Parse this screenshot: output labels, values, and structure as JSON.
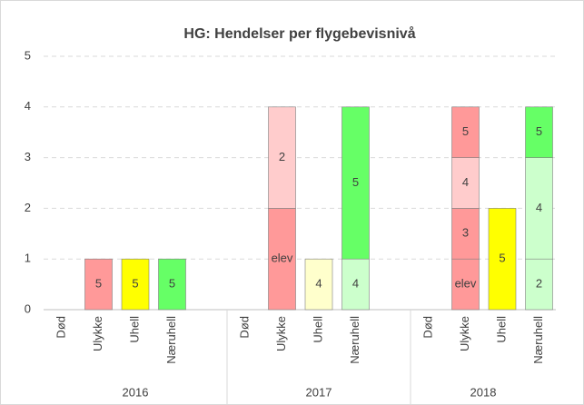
{
  "chart_data": {
    "type": "stacked_bar",
    "title": "HG: Hendelser per flygebevisnivå",
    "ylim": [
      0,
      5
    ],
    "yticks": [
      0,
      1,
      2,
      3,
      4,
      5
    ],
    "grid": true,
    "groups": [
      {
        "label": "2016",
        "categories": [
          {
            "name": "Død",
            "segments": []
          },
          {
            "name": "Ulykke",
            "segments": [
              {
                "name": "5",
                "value": 1,
                "color": "#ff9999"
              }
            ]
          },
          {
            "name": "Uhell",
            "segments": [
              {
                "name": "5",
                "value": 1,
                "color": "#ffff00"
              }
            ]
          },
          {
            "name": "Næruhell",
            "segments": [
              {
                "name": "5",
                "value": 1,
                "color": "#66ff66"
              }
            ]
          }
        ]
      },
      {
        "label": "2017",
        "categories": [
          {
            "name": "Død",
            "segments": []
          },
          {
            "name": "Ulykke",
            "segments": [
              {
                "name": "elev",
                "value": 2,
                "color": "#ff9999"
              },
              {
                "name": "2",
                "value": 2,
                "color": "#ffcccc"
              }
            ]
          },
          {
            "name": "Uhell",
            "segments": [
              {
                "name": "4",
                "value": 1,
                "color": "#ffffcc"
              }
            ]
          },
          {
            "name": "Næruhell",
            "segments": [
              {
                "name": "4",
                "value": 1,
                "color": "#ccffcc"
              },
              {
                "name": "5",
                "value": 3,
                "color": "#66ff66"
              }
            ]
          }
        ]
      },
      {
        "label": "2018",
        "categories": [
          {
            "name": "Død",
            "segments": []
          },
          {
            "name": "Ulykke",
            "segments": [
              {
                "name": "elev",
                "value": 1,
                "color": "#ff9999"
              },
              {
                "name": "3",
                "value": 1,
                "color": "#ff9999"
              },
              {
                "name": "4",
                "value": 1,
                "color": "#ffcccc"
              },
              {
                "name": "5",
                "value": 1,
                "color": "#ff9999"
              }
            ]
          },
          {
            "name": "Uhell",
            "segments": [
              {
                "name": "5",
                "value": 2,
                "color": "#ffff00"
              }
            ]
          },
          {
            "name": "Næruhell",
            "segments": [
              {
                "name": "2",
                "value": 1,
                "color": "#ccffcc"
              },
              {
                "name": "4",
                "value": 2,
                "color": "#ccffcc"
              },
              {
                "name": "5",
                "value": 1,
                "color": "#66ff66"
              }
            ]
          }
        ]
      }
    ]
  }
}
